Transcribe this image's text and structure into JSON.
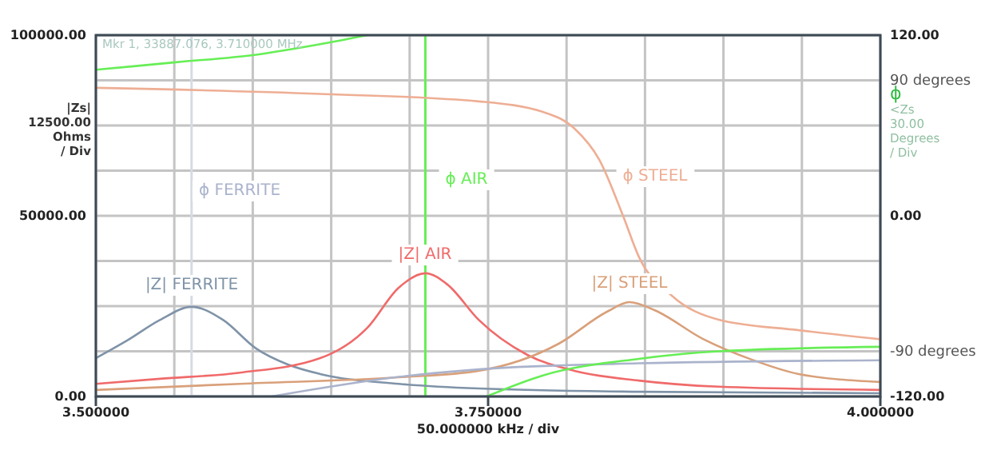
{
  "chart_data": {
    "type": "line",
    "xlabel": "50.000000 kHz / div",
    "ylabel": "|Zs|\n\n12500.00\nOhms\n/ Div",
    "y2label": "ϕ\n<Zs\n\n30.00\nDegrees\n/ Div",
    "annotations": [
      "Mkr 1, 33887.076, 3.710000 MHz"
    ],
    "xlim": [
      3.5,
      4.0
    ],
    "xticks": [
      {
        "value": 3.5,
        "label": "3.500000"
      },
      {
        "value": 3.55,
        "label": null
      },
      {
        "value": 3.6,
        "label": null
      },
      {
        "value": 3.65,
        "label": null
      },
      {
        "value": 3.7,
        "label": null
      },
      {
        "value": 3.75,
        "label": "3.750000"
      },
      {
        "value": 3.8,
        "label": null
      },
      {
        "value": 3.85,
        "label": null
      },
      {
        "value": 3.9,
        "label": null
      },
      {
        "value": 3.95,
        "label": null
      },
      {
        "value": 4.0,
        "label": "4.000000"
      }
    ],
    "ylim": [
      0,
      100000
    ],
    "yticks": [
      {
        "value": 0,
        "label": "0.00"
      },
      {
        "value": 12500,
        "label": null
      },
      {
        "value": 25000,
        "label": null
      },
      {
        "value": 37500,
        "label": null
      },
      {
        "value": 50000,
        "label": "50000.00"
      },
      {
        "value": 62500,
        "label": null
      },
      {
        "value": 75000,
        "label": null
      },
      {
        "value": 87500,
        "label": null
      },
      {
        "value": 100000,
        "label": "100000.00"
      }
    ],
    "y2lim": [
      -120,
      120
    ],
    "y2ticks": [
      {
        "value": 120,
        "label": "120.00"
      },
      {
        "value": 90,
        "label": "90 degrees"
      },
      {
        "value": 0,
        "label": "0.00"
      },
      {
        "value": -90,
        "label": "-90 degrees"
      },
      {
        "value": -120,
        "label": "-120.00"
      }
    ],
    "grid": true,
    "ref_lines": [
      {
        "axis": "x",
        "value": 3.561,
        "color": "#d6dbe3"
      },
      {
        "axis": "x",
        "value": 3.71,
        "color": "#66ee55"
      }
    ],
    "series": [
      {
        "name": "|Z| FERRITE",
        "color": "#7f93a8",
        "x": [
          3.5,
          3.52,
          3.541,
          3.561,
          3.581,
          3.602,
          3.622,
          3.643,
          3.693,
          3.744,
          3.846,
          4.0
        ],
        "values": [
          10600,
          15500,
          21200,
          24800,
          21200,
          13300,
          8900,
          6200,
          3500,
          2200,
          1300,
          900
        ]
      },
      {
        "name": "|Z| AIR",
        "color": "#f06a6a",
        "x": [
          3.5,
          3.541,
          3.592,
          3.643,
          3.673,
          3.693,
          3.71,
          3.724,
          3.744,
          3.775,
          3.805,
          3.846,
          3.897,
          4.0
        ],
        "values": [
          3500,
          4900,
          6600,
          10600,
          19000,
          30100,
          34100,
          31000,
          21200,
          11500,
          7100,
          4400,
          2700,
          1800
        ]
      },
      {
        "name": "|Z| STEEL",
        "color": "#d9a07a",
        "x": [
          3.5,
          3.592,
          3.693,
          3.744,
          3.795,
          3.826,
          3.84,
          3.856,
          3.887,
          3.918,
          3.948,
          4.0
        ],
        "values": [
          1800,
          3500,
          5300,
          7100,
          14600,
          23500,
          26100,
          23900,
          15900,
          10200,
          6200,
          4000
        ]
      },
      {
        "name": "ϕ FERRITE",
        "color": "#aab3cc",
        "axis": "y2",
        "x": [
          3.612,
          3.693,
          3.744,
          3.846,
          4.0
        ],
        "values": [
          -120,
          -107,
          -102,
          -98,
          -96
        ]
      },
      {
        "name": "ϕ AIR",
        "color": "#66ee55",
        "axis": "y2",
        "x": [
          3.5,
          3.551,
          3.602,
          3.643,
          3.673,
          3.71,
          3.749,
          3.785,
          3.846,
          3.897,
          4.0
        ],
        "values": [
          97,
          102,
          107,
          114,
          120,
          null,
          -120,
          -106,
          -95,
          -90,
          -87
        ]
      },
      {
        "name": "ϕ STEEL",
        "color": "#eeae94",
        "axis": "y2",
        "x": [
          3.5,
          3.643,
          3.744,
          3.785,
          3.805,
          3.821,
          3.836,
          3.846,
          3.867,
          3.897,
          3.948,
          4.0
        ],
        "values": [
          85,
          81,
          76,
          69,
          58,
          37,
          0,
          -27,
          -53,
          -69,
          -76,
          -82
        ]
      }
    ]
  }
}
